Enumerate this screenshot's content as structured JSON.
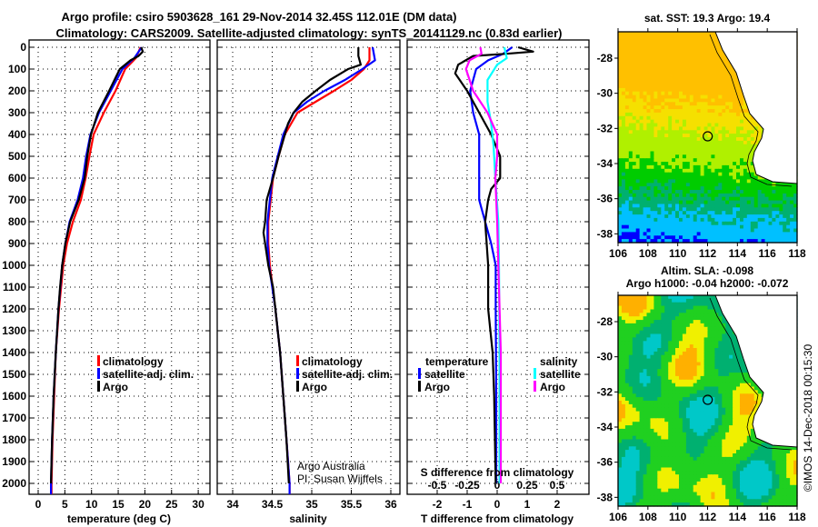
{
  "header": {
    "title_line1": "Argo profile: csiro 5903628_161 29-Nov-2014 32.45S 112.01E (DM data)",
    "title_line2": "Climatology: CARS2009. Satellite-adjusted climatology: synTS_20141129.nc (0.83d earlier)"
  },
  "colors": {
    "climatology": "#ff0000",
    "satellite": "#0000ff",
    "argo": "#000000",
    "sal_satellite": "#00ffff",
    "sal_argo": "#ff00ff"
  },
  "chart_data": [
    {
      "type": "line",
      "name": "temperature-profile",
      "xlabel": "temperature (deg C)",
      "ylabel": "depth",
      "xlim": [
        -2,
        32
      ],
      "ylim": [
        2050,
        0
      ],
      "xticks": [
        0,
        5,
        10,
        15,
        20,
        25,
        30
      ],
      "yticks": [
        0,
        100,
        200,
        300,
        400,
        500,
        600,
        700,
        800,
        900,
        1000,
        1100,
        1200,
        1300,
        1400,
        1500,
        1600,
        1700,
        1800,
        1900,
        2000
      ],
      "grid": true,
      "legend": {
        "position": "center-right",
        "entries": [
          "climatology",
          "satellite-adj. clim.",
          "Argo"
        ]
      },
      "series": [
        {
          "name": "climatology",
          "color": "#ff0000",
          "depth": [
            0,
            50,
            100,
            200,
            300,
            400,
            500,
            600,
            700,
            800,
            900,
            1000,
            1200,
            1400,
            1600,
            1800,
            2000,
            2050
          ],
          "values": [
            19.2,
            18.3,
            16.3,
            14.5,
            12.3,
            10.4,
            9.6,
            8.9,
            8.0,
            6.5,
            5.4,
            4.7,
            3.9,
            3.3,
            3.0,
            2.7,
            2.5,
            2.5
          ]
        },
        {
          "name": "satellite-adj. clim.",
          "color": "#0000ff",
          "depth": [
            0,
            50,
            100,
            200,
            300,
            400,
            500,
            600,
            700,
            800,
            900,
            1000,
            1200,
            1400,
            1600,
            1800,
            2000,
            2050
          ],
          "values": [
            19.4,
            18.0,
            15.8,
            13.6,
            11.4,
            9.8,
            9.0,
            8.4,
            7.4,
            5.9,
            5.1,
            4.5,
            3.8,
            3.3,
            2.9,
            2.6,
            2.4,
            2.4
          ]
        },
        {
          "name": "Argo",
          "color": "#000000",
          "depth": [
            0,
            20,
            40,
            60,
            100,
            200,
            300,
            400,
            500,
            600,
            700,
            800,
            900,
            1000,
            1100,
            1200,
            1400,
            1600,
            1800,
            2000
          ],
          "values": [
            19.3,
            19.6,
            18.8,
            17.3,
            15.3,
            13.3,
            11.2,
            9.9,
            9.2,
            8.7,
            7.6,
            6.0,
            5.1,
            4.5,
            4.1,
            3.8,
            3.3,
            2.9,
            2.6,
            2.4
          ]
        }
      ],
      "annotations": []
    },
    {
      "type": "line",
      "name": "salinity-profile",
      "xlabel": "salinity",
      "xlim": [
        33.8,
        36.05
      ],
      "ylim": [
        2050,
        0
      ],
      "xticks": [
        34,
        34.5,
        35,
        35.5,
        36
      ],
      "grid": true,
      "legend": {
        "position": "center-right",
        "entries": [
          "climatology",
          "satellite-adj. clim.",
          "Argo"
        ]
      },
      "series": [
        {
          "name": "climatology",
          "color": "#ff0000",
          "depth": [
            0,
            60,
            100,
            150,
            200,
            250,
            300,
            400,
            500,
            600,
            800,
            900,
            1000,
            1200,
            1400,
            1600,
            1800,
            2000,
            2050
          ],
          "values": [
            35.73,
            35.73,
            35.66,
            35.5,
            35.28,
            35.05,
            34.82,
            34.66,
            34.58,
            34.51,
            34.45,
            34.45,
            34.47,
            34.54,
            34.6,
            34.64,
            34.68,
            34.72,
            34.72
          ]
        },
        {
          "name": "satellite-adj. clim.",
          "color": "#0000ff",
          "depth": [
            0,
            60,
            100,
            150,
            200,
            250,
            300,
            400,
            500,
            600,
            800,
            900,
            1000,
            1200,
            1400,
            1600,
            1800,
            2000,
            2050
          ],
          "values": [
            35.77,
            35.8,
            35.64,
            35.42,
            35.16,
            34.94,
            34.77,
            34.64,
            34.57,
            34.5,
            34.44,
            34.44,
            34.46,
            34.54,
            34.6,
            34.64,
            34.68,
            34.72,
            34.72
          ]
        },
        {
          "name": "Argo",
          "color": "#000000",
          "depth": [
            0,
            40,
            80,
            100,
            150,
            200,
            250,
            300,
            350,
            400,
            500,
            600,
            700,
            800,
            850,
            900,
            1000,
            1100,
            1400,
            1600,
            1800,
            2000
          ],
          "values": [
            35.59,
            35.59,
            35.62,
            35.46,
            35.23,
            35.05,
            34.88,
            34.77,
            34.7,
            34.66,
            34.58,
            34.51,
            34.43,
            34.41,
            34.39,
            34.41,
            34.45,
            34.51,
            34.6,
            34.64,
            34.68,
            34.71
          ]
        }
      ],
      "annotations": [
        "Argo Australia",
        "PI: Susan Wijffels"
      ]
    },
    {
      "type": "line",
      "name": "difference-profile",
      "xlabel": "T difference from climatology",
      "x2label": "S difference from climatology",
      "xlim": [
        -3,
        3
      ],
      "x2lim": [
        -0.75,
        0.75
      ],
      "ylim": [
        2050,
        0
      ],
      "xticks": [
        -2,
        -1,
        0,
        1,
        2
      ],
      "x2ticks": [
        -0.5,
        -0.25,
        0,
        0.25,
        0.5
      ],
      "x2ticklabels": [
        "-0.5",
        "-0.25",
        "0",
        "0.25",
        "0.5"
      ],
      "grid": true,
      "legend_temperature": {
        "title": "temperature",
        "entries": [
          "satellite",
          "Argo"
        ]
      },
      "legend_salinity": {
        "title": "salinity",
        "entries": [
          "satellite",
          "Argo"
        ]
      },
      "series": [
        {
          "name": "T satellite",
          "axis": "T",
          "color": "#0000ff",
          "depth": [
            0,
            30,
            60,
            100,
            200,
            300,
            400,
            500,
            600,
            700,
            800,
            900,
            1000,
            1200,
            1600,
            2000
          ],
          "values": [
            0.5,
            0.2,
            -0.3,
            -0.7,
            -0.9,
            -0.8,
            -0.6,
            -0.6,
            -0.6,
            -0.6,
            -0.4,
            -0.2,
            -0.05,
            -0.05,
            -0.03,
            -0.03
          ]
        },
        {
          "name": "T Argo",
          "axis": "T",
          "color": "#000000",
          "depth": [
            0,
            20,
            30,
            40,
            80,
            120,
            200,
            300,
            400,
            500,
            600,
            650,
            700,
            800,
            1000,
            1200,
            1400,
            1600,
            2000
          ],
          "values": [
            0.7,
            1.2,
            0.3,
            -0.8,
            -1.3,
            -1.4,
            -1.0,
            -0.6,
            -0.2,
            0.1,
            0.1,
            -0.2,
            -0.3,
            -0.4,
            -0.3,
            -0.3,
            -0.15,
            -0.1,
            -0.05
          ]
        },
        {
          "name": "S satellite",
          "axis": "S",
          "color": "#00ffff",
          "depth": [
            0,
            50,
            80,
            150,
            250,
            350,
            450,
            600,
            800,
            1000,
            1400,
            2000
          ],
          "values": [
            0.06,
            0.08,
            0.0,
            -0.08,
            -0.08,
            -0.05,
            -0.03,
            -0.015,
            0.01,
            0.015,
            0.02,
            0.02
          ]
        },
        {
          "name": "S Argo",
          "axis": "S",
          "color": "#ff00ff",
          "depth": [
            0,
            30,
            60,
            100,
            200,
            300,
            400,
            500,
            600,
            800,
            1000,
            1400,
            2000
          ],
          "values": [
            -0.14,
            -0.13,
            -0.23,
            -0.26,
            -0.2,
            -0.08,
            0.0,
            0.0,
            -0.015,
            0.0,
            0.01,
            0.03,
            0.03
          ]
        }
      ]
    },
    {
      "type": "heatmap",
      "name": "sst-map",
      "title": "sat. SST: 19.3 Argo: 19.4",
      "xlim": [
        106,
        118
      ],
      "ylim": [
        -38.5,
        -26.5
      ],
      "xticks": [
        106,
        108,
        110,
        112,
        114,
        116,
        118
      ],
      "yticks": [
        -28,
        -30,
        -32,
        -34,
        -36,
        -38
      ],
      "marker": {
        "lon": 112.01,
        "lat": -32.45
      }
    },
    {
      "type": "heatmap",
      "name": "sla-map",
      "title_line1": "Altim. SLA: -0.098",
      "title_line2": "Argo h1000: -0.04 h2000: -0.072",
      "xlim": [
        106,
        118
      ],
      "ylim": [
        -38.5,
        -26.5
      ],
      "xticks": [
        106,
        108,
        110,
        112,
        114,
        116,
        118
      ],
      "yticks": [
        -28,
        -30,
        -32,
        -34,
        -36,
        -38
      ],
      "marker": {
        "lon": 112.01,
        "lat": -32.45
      },
      "credit": "©IMOS 14-Dec-2018 00:15:30"
    }
  ]
}
